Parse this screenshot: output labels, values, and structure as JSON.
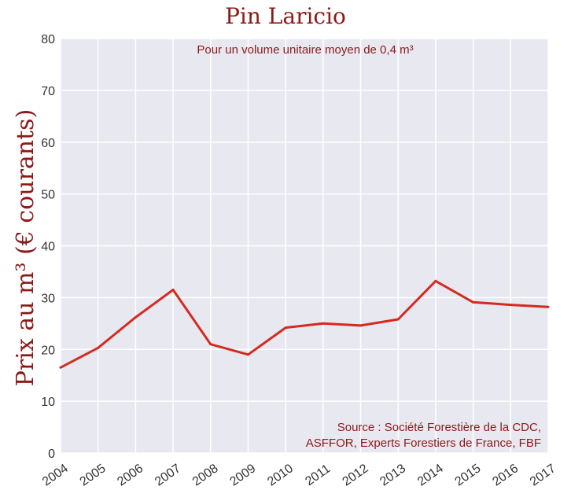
{
  "chart_data": {
    "type": "line",
    "title": "Pin Laricio",
    "subtitle": "Pour un volume unitaire moyen de 0,4 m³",
    "xlabel": "",
    "ylabel": "Prix au m³ (€ courants)",
    "source_lines": [
      "Source : Société Forestière de la CDC,",
      "ASFFOR, Experts Forestiers de France, FBF"
    ],
    "x": [
      2004,
      2005,
      2006,
      2007,
      2008,
      2009,
      2010,
      2011,
      2012,
      2013,
      2014,
      2015,
      2016,
      2017
    ],
    "x_tick_labels": [
      "2004",
      "2005",
      "2006",
      "2007",
      "2008",
      "2009",
      "2010",
      "2011",
      "2012",
      "2013",
      "2014",
      "2015",
      "2016",
      "2017"
    ],
    "series": [
      {
        "values": [
          16.5,
          20.3,
          26.2,
          31.5,
          21.0,
          19.0,
          24.2,
          25.0,
          24.6,
          25.8,
          33.2,
          29.1,
          28.6,
          28.2
        ]
      }
    ],
    "ylim": [
      0,
      80
    ],
    "y_ticks": [
      0,
      10,
      20,
      30,
      40,
      50,
      60,
      70,
      80
    ],
    "grid": true,
    "colors": {
      "line": "#d42a20",
      "title": "#8b1a1a",
      "ylabel": "#8b1a1a",
      "annotation": "#8b1a1a",
      "plot_background": "#e8e8f0",
      "grid": "#ffffff"
    }
  }
}
